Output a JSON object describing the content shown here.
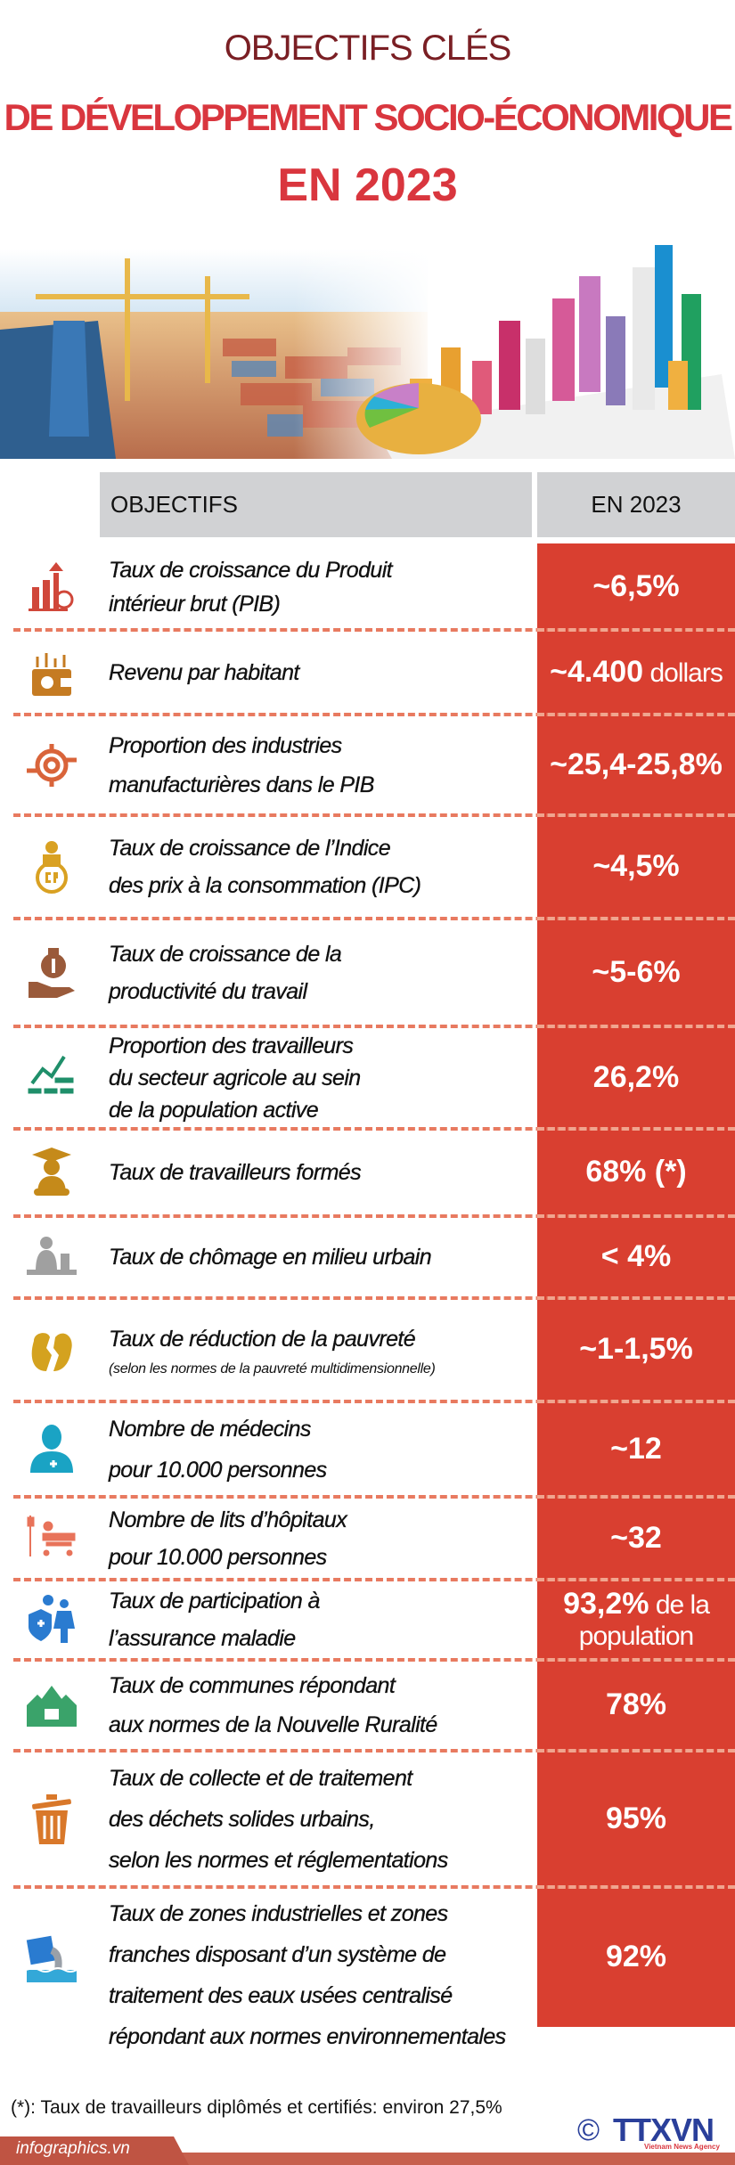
{
  "title": {
    "line1": "OBJECTIFS CLÉS",
    "line2": "DE DÉVELOPPEMENT SOCIO-ÉCONOMIQUE",
    "line3": "EN 2023"
  },
  "table_header": {
    "objectives": "OBJECTIFS",
    "year": "EN 2023"
  },
  "colors": {
    "title_dark": "#7a1f24",
    "title_red": "#d9363e",
    "value_column": "#d93f30",
    "header_grey": "#d1d2d4",
    "separator": "#e87a60"
  },
  "rows": [
    {
      "icon": "gdp-growth-chart-icon",
      "label": [
        "Taux de croissance du Produit",
        "intérieur brut (PIB)"
      ],
      "value": "~6,5%"
    },
    {
      "icon": "wallet-icon",
      "label": [
        "Revenu par habitant"
      ],
      "value": "~4.400",
      "value_suffix": " dollars"
    },
    {
      "icon": "manufacturing-gear-icon",
      "label": [
        "Proportion des industries",
        "manufacturières dans le PIB"
      ],
      "value": "~25,4-25,8%"
    },
    {
      "icon": "cpi-icon",
      "label": [
        "Taux de croissance de l’Indice",
        "des prix à la consommation (IPC)"
      ],
      "value": "~4,5%"
    },
    {
      "icon": "money-bag-hand-icon",
      "label": [
        "Taux de croissance de la",
        "productivité du travail"
      ],
      "value": "~5-6%"
    },
    {
      "icon": "trend-chart-icon",
      "label": [
        "Proportion des travailleurs",
        "du secteur agricole au sein",
        "de la population active"
      ],
      "value": "26,2%"
    },
    {
      "icon": "graduate-icon",
      "label": [
        "Taux de travailleurs formés"
      ],
      "value": "68% (*)"
    },
    {
      "icon": "unemployed-person-icon",
      "label": [
        "Taux de chômage en milieu urbain"
      ],
      "value": "< 4%"
    },
    {
      "icon": "poverty-icon",
      "label": [
        "Taux de réduction de la pauvreté"
      ],
      "sublabel": "(selon les normes de la pauvreté multidimensionnelle)",
      "value": "~1-1,5%"
    },
    {
      "icon": "doctor-icon",
      "label": [
        "Nombre de médecins",
        "pour 10.000 personnes"
      ],
      "value": "~12"
    },
    {
      "icon": "hospital-bed-icon",
      "label": [
        "Nombre de lits d’hôpitaux",
        "pour 10.000 personnes"
      ],
      "value": "~32"
    },
    {
      "icon": "health-insurance-family-icon",
      "label": [
        "Taux de participation à",
        "l’assurance maladie"
      ],
      "value": "93,2%",
      "value_suffix": " de la",
      "value_line2": "population"
    },
    {
      "icon": "rural-houses-icon",
      "label": [
        "Taux de communes répondant",
        "aux normes de la Nouvelle Ruralité"
      ],
      "value": "78%"
    },
    {
      "icon": "trash-bin-icon",
      "label": [
        "Taux de collecte et de traitement",
        "des déchets solides urbains,",
        "selon les normes et réglementations"
      ],
      "value": "95%"
    },
    {
      "icon": "wastewater-icon",
      "label": [
        "Taux de zones industrielles et zones",
        "franches disposant d’un système de",
        "traitement des eaux usées centralisé",
        "répondant aux normes environnementales"
      ],
      "value": "92%"
    }
  ],
  "footnote": "(*): Taux de travailleurs diplômés et certifiés: environ 27,5%",
  "footer": {
    "site": "infographics.vn",
    "copyright_symbol": "©",
    "logo_text": "TTXVN",
    "logo_subtitle": "Vietnam News Agency"
  }
}
